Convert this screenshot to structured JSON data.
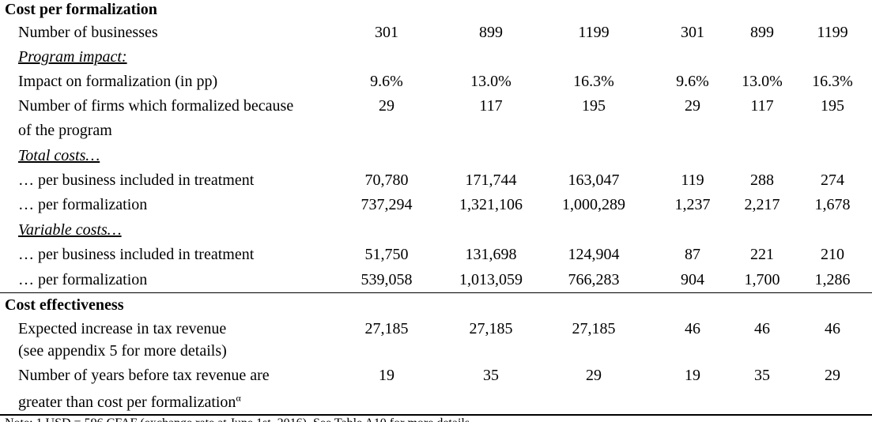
{
  "sections": {
    "cost_per_formalization": "Cost per formalization",
    "cost_effectiveness": "Cost effectiveness"
  },
  "rows": [
    {
      "label": "Number of businesses",
      "values": [
        "301",
        "899",
        "1199",
        "301",
        "899",
        "1199"
      ]
    },
    {
      "label": "Program impact:"
    },
    {
      "label": "Impact on formalization (in pp)",
      "values": [
        "9.6%",
        "13.0%",
        "16.3%",
        "9.6%",
        "13.0%",
        "16.3%"
      ]
    },
    {
      "label": "Number of firms which formalized because",
      "label2": "of the program",
      "values": [
        "29",
        "117",
        "195",
        "29",
        "117",
        "195"
      ]
    },
    {
      "label": "Total costs…"
    },
    {
      "label": "… per business included in treatment",
      "values": [
        "70,780",
        "171,744",
        "163,047",
        "119",
        "288",
        "274"
      ]
    },
    {
      "label": "… per formalization",
      "values": [
        "737,294",
        "1,321,106",
        "1,000,289",
        "1,237",
        "2,217",
        "1,678"
      ]
    },
    {
      "label": "Variable costs…"
    },
    {
      "label": "… per business included in treatment",
      "values": [
        "51,750",
        "131,698",
        "124,904",
        "87",
        "221",
        "210"
      ]
    },
    {
      "label": "… per formalization",
      "values": [
        "539,058",
        "1,013,059",
        "766,283",
        "904",
        "1,700",
        "1,286"
      ]
    },
    {
      "label": "Expected increase in tax revenue",
      "label2": "(see appendix 5 for more details)",
      "values": [
        "27,185",
        "27,185",
        "27,185",
        "46",
        "46",
        "46"
      ]
    },
    {
      "label": "Number of years before tax revenue are",
      "label2": "greater than cost per formalization",
      "sup": "α",
      "values": [
        "19",
        "35",
        "29",
        "19",
        "35",
        "29"
      ]
    }
  ],
  "footnote": "Note: 1 USD = 596 CFAF (exchange rate at June 1st, 2016). See Table A10 for more details."
}
